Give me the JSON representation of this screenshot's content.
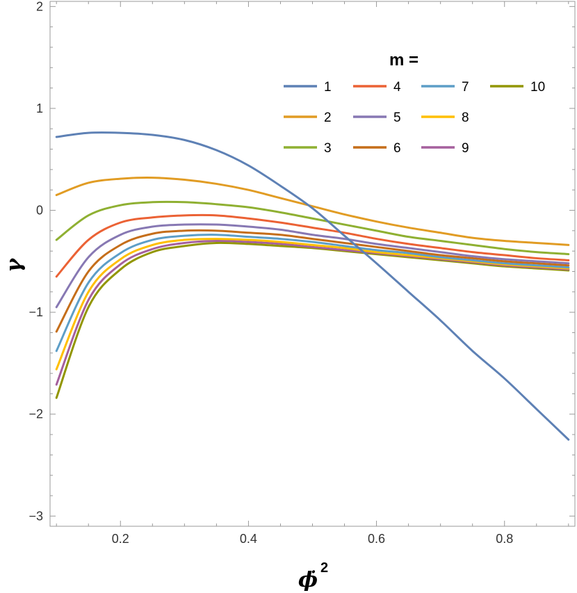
{
  "chart_data": {
    "type": "line",
    "title": "",
    "xlabel": "ϕ̇",
    "xlabel_exponent": "2",
    "ylabel": "γ",
    "xlim": [
      0.09,
      0.91
    ],
    "ylim": [
      -3.1,
      2.05
    ],
    "x_ticks": [
      0.2,
      0.4,
      0.6,
      0.8
    ],
    "x_tick_labels": [
      "0.2",
      "0.4",
      "0.6",
      "0.8"
    ],
    "y_ticks": [
      -3,
      -2,
      -1,
      0,
      1,
      2
    ],
    "y_tick_labels": [
      "−3",
      "−2",
      "−1",
      "0",
      "1",
      "2"
    ],
    "grid": false,
    "legend": {
      "title": "m =",
      "placement": "top-right",
      "columns": 4
    },
    "x": [
      0.1,
      0.15,
      0.2,
      0.25,
      0.3,
      0.35,
      0.4,
      0.45,
      0.5,
      0.55,
      0.6,
      0.65,
      0.7,
      0.75,
      0.8,
      0.85,
      0.9
    ],
    "series": [
      {
        "name": "1",
        "color": "#5E81B5",
        "values": [
          0.72,
          0.76,
          0.76,
          0.74,
          0.69,
          0.59,
          0.44,
          0.24,
          0.02,
          -0.25,
          -0.52,
          -0.8,
          -1.08,
          -1.38,
          -1.65,
          -1.95,
          -2.25
        ]
      },
      {
        "name": "2",
        "color": "#E19C24",
        "values": [
          0.15,
          0.27,
          0.31,
          0.32,
          0.3,
          0.26,
          0.2,
          0.12,
          0.04,
          -0.04,
          -0.11,
          -0.17,
          -0.22,
          -0.27,
          -0.3,
          -0.32,
          -0.34
        ]
      },
      {
        "name": "3",
        "color": "#8FB032",
        "values": [
          -0.29,
          -0.05,
          0.05,
          0.08,
          0.08,
          0.06,
          0.03,
          -0.02,
          -0.08,
          -0.14,
          -0.2,
          -0.26,
          -0.3,
          -0.34,
          -0.38,
          -0.41,
          -0.43
        ]
      },
      {
        "name": "4",
        "color": "#EB6235",
        "values": [
          -0.65,
          -0.29,
          -0.12,
          -0.07,
          -0.05,
          -0.05,
          -0.08,
          -0.12,
          -0.17,
          -0.22,
          -0.28,
          -0.33,
          -0.37,
          -0.41,
          -0.44,
          -0.47,
          -0.49
        ]
      },
      {
        "name": "5",
        "color": "#8778B3",
        "values": [
          -0.95,
          -0.46,
          -0.24,
          -0.16,
          -0.14,
          -0.14,
          -0.16,
          -0.19,
          -0.24,
          -0.28,
          -0.33,
          -0.37,
          -0.41,
          -0.45,
          -0.48,
          -0.5,
          -0.52
        ]
      },
      {
        "name": "6",
        "color": "#C56E1A",
        "values": [
          -1.19,
          -0.6,
          -0.34,
          -0.23,
          -0.2,
          -0.2,
          -0.22,
          -0.24,
          -0.28,
          -0.32,
          -0.36,
          -0.4,
          -0.44,
          -0.47,
          -0.5,
          -0.52,
          -0.54
        ]
      },
      {
        "name": "7",
        "color": "#5D9EC7",
        "values": [
          -1.38,
          -0.71,
          -0.42,
          -0.29,
          -0.25,
          -0.24,
          -0.26,
          -0.28,
          -0.31,
          -0.35,
          -0.39,
          -0.42,
          -0.46,
          -0.49,
          -0.52,
          -0.54,
          -0.56
        ]
      },
      {
        "name": "8",
        "color": "#FFBF00",
        "values": [
          -1.56,
          -0.8,
          -0.48,
          -0.34,
          -0.29,
          -0.28,
          -0.29,
          -0.31,
          -0.34,
          -0.37,
          -0.41,
          -0.44,
          -0.47,
          -0.5,
          -0.53,
          -0.55,
          -0.57
        ]
      },
      {
        "name": "9",
        "color": "#A5609D",
        "values": [
          -1.71,
          -0.88,
          -0.53,
          -0.38,
          -0.32,
          -0.3,
          -0.31,
          -0.33,
          -0.36,
          -0.39,
          -0.42,
          -0.45,
          -0.48,
          -0.51,
          -0.54,
          -0.56,
          -0.58
        ]
      },
      {
        "name": "10",
        "color": "#929600",
        "values": [
          -1.84,
          -0.95,
          -0.58,
          -0.41,
          -0.35,
          -0.32,
          -0.33,
          -0.35,
          -0.37,
          -0.4,
          -0.43,
          -0.46,
          -0.49,
          -0.52,
          -0.55,
          -0.57,
          -0.59
        ]
      }
    ]
  }
}
